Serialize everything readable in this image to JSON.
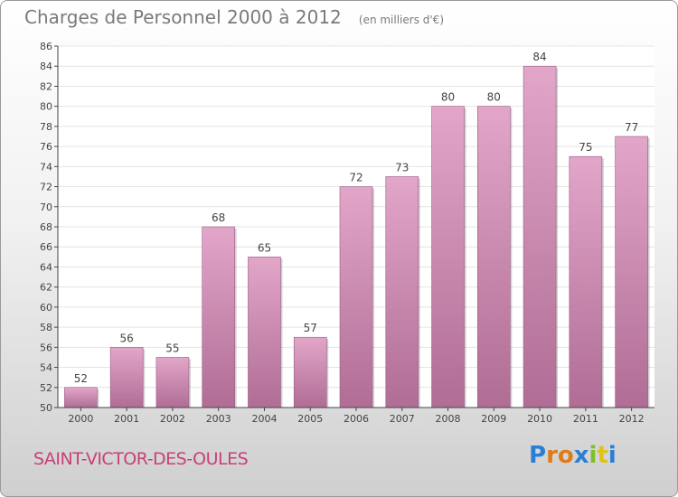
{
  "header": {
    "title": "Charges de Personnel 2000 à 2012",
    "unit": "(en milliers d'€)"
  },
  "footer": {
    "city": "SAINT-VICTOR-DES-OULES",
    "logo_text": "Proxiti"
  },
  "colors": {
    "bar_light": "#e2a6c9",
    "bar_dark": "#b06d95",
    "city_text": "#c8407a",
    "grid": "#e4e4e4",
    "axis": "#444444"
  },
  "chart_data": {
    "type": "bar",
    "title": "Charges de Personnel 2000 à 2012",
    "subtitle": "(en milliers d'€)",
    "categories": [
      "2000",
      "2001",
      "2002",
      "2003",
      "2004",
      "2005",
      "2006",
      "2007",
      "2008",
      "2009",
      "2010",
      "2011",
      "2012"
    ],
    "values": [
      52,
      56,
      55,
      68,
      65,
      57,
      72,
      73,
      80,
      80,
      84,
      75,
      77
    ],
    "ylim": [
      50,
      86
    ],
    "yticks": [
      50,
      52,
      54,
      56,
      58,
      60,
      62,
      64,
      66,
      68,
      70,
      72,
      74,
      76,
      78,
      80,
      82,
      84,
      86
    ],
    "grid": true,
    "data_labels": true
  }
}
